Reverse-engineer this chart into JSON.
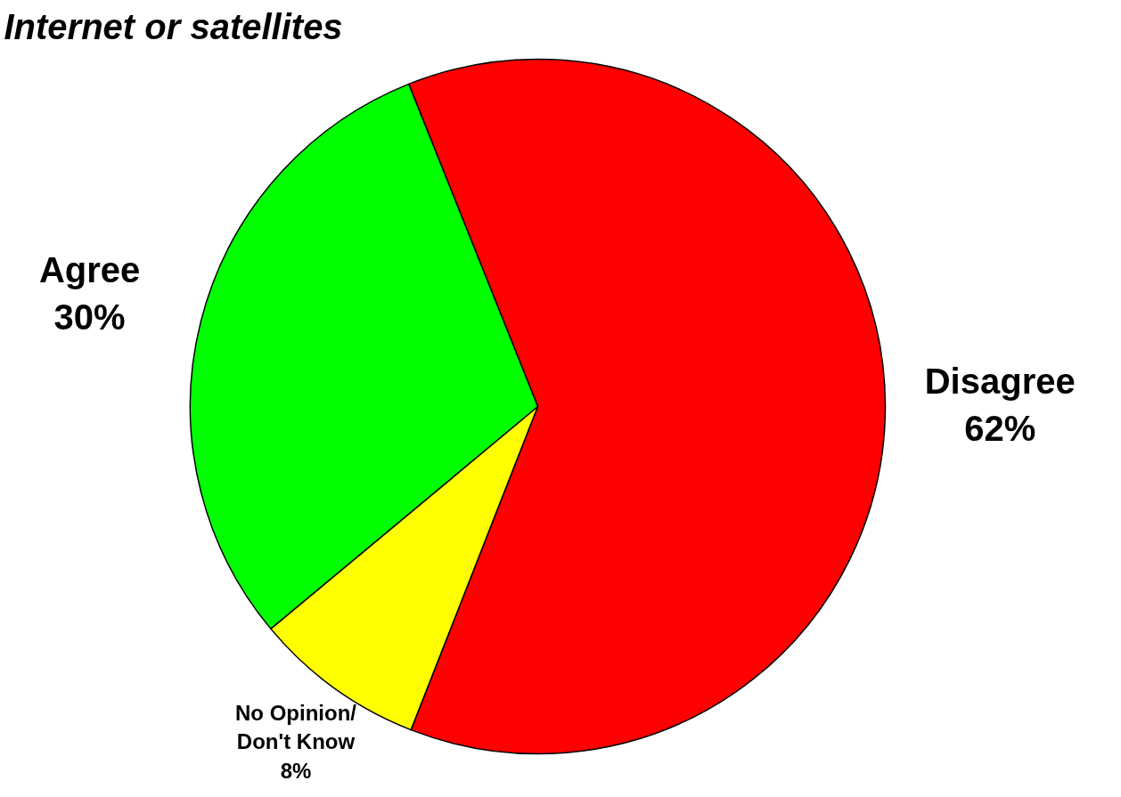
{
  "chart_data": {
    "type": "pie",
    "title": "Internet or satellites",
    "categories": [
      "Disagree",
      "No Opinion/ Don't Know",
      "Agree"
    ],
    "values": [
      62,
      8,
      30
    ],
    "colors": [
      "#ff0000",
      "#ffff00",
      "#00ff00"
    ],
    "value_labels": [
      "62%",
      "8%",
      "30%"
    ]
  }
}
